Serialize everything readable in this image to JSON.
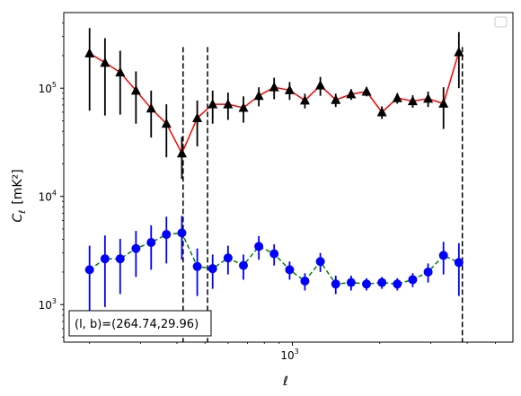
{
  "chart_data": {
    "type": "scatter",
    "title": "",
    "xlabel": "ℓ",
    "ylabel": "C",
    "ylabel_sub": "ℓ",
    "ylabel_unit": "[mK²]",
    "x_scale": "log",
    "y_scale": "log",
    "xlim": [
      163,
      5750
    ],
    "ylim": [
      450,
      500000
    ],
    "x_ticks": [
      {
        "value": 1000,
        "base": "10",
        "exp": "3"
      }
    ],
    "y_ticks": [
      {
        "value": 1000,
        "base": "10",
        "exp": "3"
      },
      {
        "value": 10000,
        "base": "10",
        "exp": "4"
      },
      {
        "value": 100000,
        "base": "10",
        "exp": "5"
      }
    ],
    "grid": false,
    "legend": "top-right (empty)",
    "vlines": [
      420,
      510,
      3850
    ],
    "annotation": "(l, b)=(264.74,29.96)",
    "series": [
      {
        "color_marker": "#000000",
        "color_line": "#ff0000",
        "color_err": "#000000",
        "line_style": "solid",
        "marker": "triangle",
        "points": [
          {
            "x": 200,
            "y": 210000,
            "lo": 62000,
            "hi": 360000
          },
          {
            "x": 226,
            "y": 172000,
            "lo": 56000,
            "hi": 290000
          },
          {
            "x": 255,
            "y": 140000,
            "lo": 57000,
            "hi": 222000
          },
          {
            "x": 289,
            "y": 95000,
            "lo": 47000,
            "hi": 143000
          },
          {
            "x": 326,
            "y": 65000,
            "lo": 35000,
            "hi": 95000
          },
          {
            "x": 368,
            "y": 47000,
            "lo": 23000,
            "hi": 71000
          },
          {
            "x": 416,
            "y": 25000,
            "lo": 14500,
            "hi": 35500
          },
          {
            "x": 470,
            "y": 53000,
            "lo": 29000,
            "hi": 77000
          },
          {
            "x": 531,
            "y": 71000,
            "lo": 47000,
            "hi": 95000
          },
          {
            "x": 600,
            "y": 71000,
            "lo": 51000,
            "hi": 91000
          },
          {
            "x": 678,
            "y": 66000,
            "lo": 48000,
            "hi": 84000
          },
          {
            "x": 766,
            "y": 85000,
            "lo": 68000,
            "hi": 102000
          },
          {
            "x": 865,
            "y": 102000,
            "lo": 79000,
            "hi": 125000
          },
          {
            "x": 978,
            "y": 96000,
            "lo": 78000,
            "hi": 114000
          },
          {
            "x": 1104,
            "y": 77000,
            "lo": 65000,
            "hi": 89000
          },
          {
            "x": 1248,
            "y": 106000,
            "lo": 85000,
            "hi": 127000
          },
          {
            "x": 1410,
            "y": 78000,
            "lo": 67000,
            "hi": 89000
          },
          {
            "x": 1593,
            "y": 88000,
            "lo": 78000,
            "hi": 98000
          },
          {
            "x": 1800,
            "y": 93000,
            "lo": 84000,
            "hi": 102000
          },
          {
            "x": 2034,
            "y": 60000,
            "lo": 52000,
            "hi": 68000
          },
          {
            "x": 2298,
            "y": 81000,
            "lo": 72000,
            "hi": 90000
          },
          {
            "x": 2597,
            "y": 76000,
            "lo": 66000,
            "hi": 86000
          },
          {
            "x": 2934,
            "y": 80000,
            "lo": 67000,
            "hi": 93000
          },
          {
            "x": 3315,
            "y": 72000,
            "lo": 42000,
            "hi": 102000
          },
          {
            "x": 3745,
            "y": 215000,
            "lo": 100000,
            "hi": 330000
          }
        ]
      },
      {
        "color_marker": "#0000ff",
        "color_line": "#008000",
        "color_err": "#0000ff",
        "line_style": "dashed",
        "marker": "circle",
        "points": [
          {
            "x": 200,
            "y": 2100,
            "lo": 700,
            "hi": 3500
          },
          {
            "x": 226,
            "y": 2650,
            "lo": 950,
            "hi": 4350
          },
          {
            "x": 255,
            "y": 2650,
            "lo": 1250,
            "hi": 4050
          },
          {
            "x": 289,
            "y": 3300,
            "lo": 1800,
            "hi": 4800
          },
          {
            "x": 326,
            "y": 3750,
            "lo": 2100,
            "hi": 5400
          },
          {
            "x": 368,
            "y": 4450,
            "lo": 2400,
            "hi": 6500
          },
          {
            "x": 416,
            "y": 4600,
            "lo": 2600,
            "hi": 6600
          },
          {
            "x": 470,
            "y": 2250,
            "lo": 1200,
            "hi": 3300
          },
          {
            "x": 531,
            "y": 2150,
            "lo": 1400,
            "hi": 2900
          },
          {
            "x": 600,
            "y": 2700,
            "lo": 1900,
            "hi": 3500
          },
          {
            "x": 678,
            "y": 2300,
            "lo": 1700,
            "hi": 2900
          },
          {
            "x": 766,
            "y": 3450,
            "lo": 2600,
            "hi": 4300
          },
          {
            "x": 865,
            "y": 2950,
            "lo": 2300,
            "hi": 3600
          },
          {
            "x": 978,
            "y": 2100,
            "lo": 1700,
            "hi": 2500
          },
          {
            "x": 1104,
            "y": 1650,
            "lo": 1350,
            "hi": 1950
          },
          {
            "x": 1248,
            "y": 2500,
            "lo": 2000,
            "hi": 3000
          },
          {
            "x": 1410,
            "y": 1550,
            "lo": 1250,
            "hi": 1850
          },
          {
            "x": 1593,
            "y": 1600,
            "lo": 1350,
            "hi": 1850
          },
          {
            "x": 1800,
            "y": 1550,
            "lo": 1350,
            "hi": 1750
          },
          {
            "x": 2034,
            "y": 1600,
            "lo": 1400,
            "hi": 1800
          },
          {
            "x": 2298,
            "y": 1550,
            "lo": 1350,
            "hi": 1750
          },
          {
            "x": 2597,
            "y": 1700,
            "lo": 1450,
            "hi": 1950
          },
          {
            "x": 2934,
            "y": 2000,
            "lo": 1600,
            "hi": 2400
          },
          {
            "x": 3315,
            "y": 2850,
            "lo": 1900,
            "hi": 3800
          },
          {
            "x": 3745,
            "y": 2450,
            "lo": 1200,
            "hi": 3700
          }
        ]
      }
    ]
  }
}
